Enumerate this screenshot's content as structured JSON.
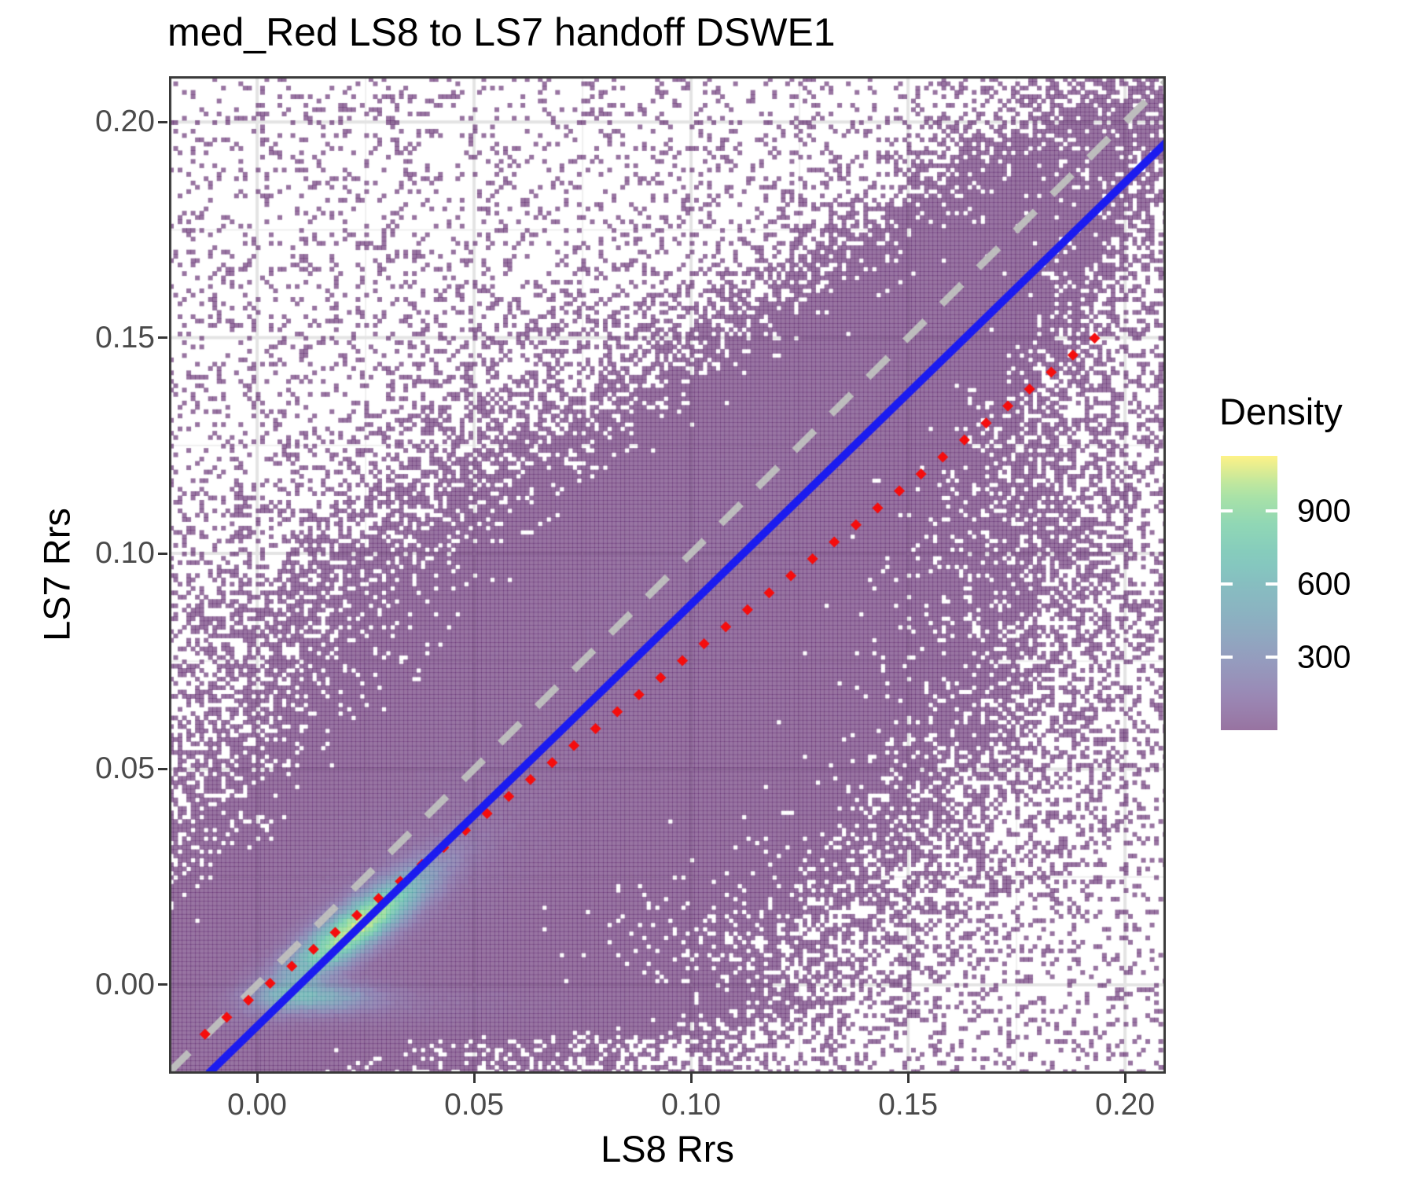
{
  "chart_data": {
    "type": "heatmap",
    "subtype": "bin2d-density-scatter",
    "title": "med_Red LS8 to LS7 handoff DSWE1",
    "xlabel": "LS8 Rrs",
    "ylabel": "LS7 Rrs",
    "x_range": [
      -0.0203,
      0.2094
    ],
    "y_range": [
      -0.0206,
      0.2106
    ],
    "x_ticks": [
      {
        "v": 0.0,
        "label": "0.00"
      },
      {
        "v": 0.05,
        "label": "0.05"
      },
      {
        "v": 0.1,
        "label": "0.10"
      },
      {
        "v": 0.15,
        "label": "0.15"
      },
      {
        "v": 0.2,
        "label": "0.20"
      }
    ],
    "y_ticks": [
      {
        "v": 0.0,
        "label": "0.00"
      },
      {
        "v": 0.05,
        "label": "0.05"
      },
      {
        "v": 0.1,
        "label": "0.10"
      },
      {
        "v": 0.15,
        "label": "0.15"
      },
      {
        "v": 0.2,
        "label": "0.20"
      }
    ],
    "minor_grid_values": [
      0.025,
      0.075,
      0.125,
      0.175
    ],
    "grid": {
      "major_color": "#e4e4e4",
      "minor_color": "#efefef",
      "major_width": 4,
      "minor_width": 2
    },
    "panel_border_color": "#383838",
    "axis_text_color": "#4a4a4a",
    "bin_size": 0.001,
    "fill_alpha": 0.55,
    "viridis_stops": [
      "#440154",
      "#482878",
      "#3e4a89",
      "#31688e",
      "#26828e",
      "#1f9e89",
      "#35b779",
      "#6ece58",
      "#fde725"
    ],
    "legend": {
      "title": "Density",
      "limits": [
        0,
        1126
      ],
      "breaks": [
        {
          "v": 900,
          "label": "900"
        },
        {
          "v": 600,
          "label": "600"
        },
        {
          "v": 300,
          "label": "300"
        }
      ]
    },
    "lines": {
      "identity_line": {
        "slope": 1.0,
        "intercept": 0.0,
        "color": "#bdbdbd",
        "width": 9,
        "dash": [
          36,
          30
        ]
      },
      "fit_line": {
        "slope": 0.978,
        "intercept": -0.0096,
        "color": "#1b1bef",
        "width": 10
      },
      "handoff_line": {
        "slope": 0.787,
        "intercept": -0.002,
        "color": "#f50d0d",
        "shape": "diamond",
        "dot_half": 7,
        "x_start": -0.012,
        "x_end": 0.197,
        "step": 0.005
      }
    },
    "density_model": {
      "seed": 1337,
      "components": [
        {
          "name": "core",
          "type": "gauss",
          "n": 300000,
          "cx": 0.023,
          "cy": 0.0135,
          "sx": 0.011,
          "sy": 0.0085,
          "rho": 0.87
        },
        {
          "name": "core-halo",
          "type": "gauss",
          "n": 85000,
          "cx": 0.032,
          "cy": 0.021,
          "sx": 0.023,
          "sy": 0.017,
          "rho": 0.72
        },
        {
          "name": "diagonal-band",
          "type": "line-band",
          "n": 85000,
          "cx": 0.085,
          "sx": 0.055,
          "slope": 0.95,
          "intercept": 0.002,
          "sy": 0.018
        },
        {
          "name": "broad-cloud",
          "type": "gauss",
          "n": 75000,
          "cx": 0.082,
          "cy": 0.06,
          "sx": 0.051,
          "sy": 0.042,
          "rho": 0.45
        },
        {
          "name": "zero-stripe",
          "type": "gauss",
          "n": 55000,
          "cx": 0.013,
          "cy": -0.0028,
          "sx": 0.009,
          "sy": 0.0022,
          "rho": 0.0
        },
        {
          "name": "bottom-band",
          "type": "bottom",
          "n": 26000,
          "x0": 0.002,
          "sx": 0.038,
          "cy": -0.0045,
          "sy": 0.003
        },
        {
          "name": "sparse-uniform",
          "type": "uniform",
          "n": 9000
        }
      ]
    }
  }
}
